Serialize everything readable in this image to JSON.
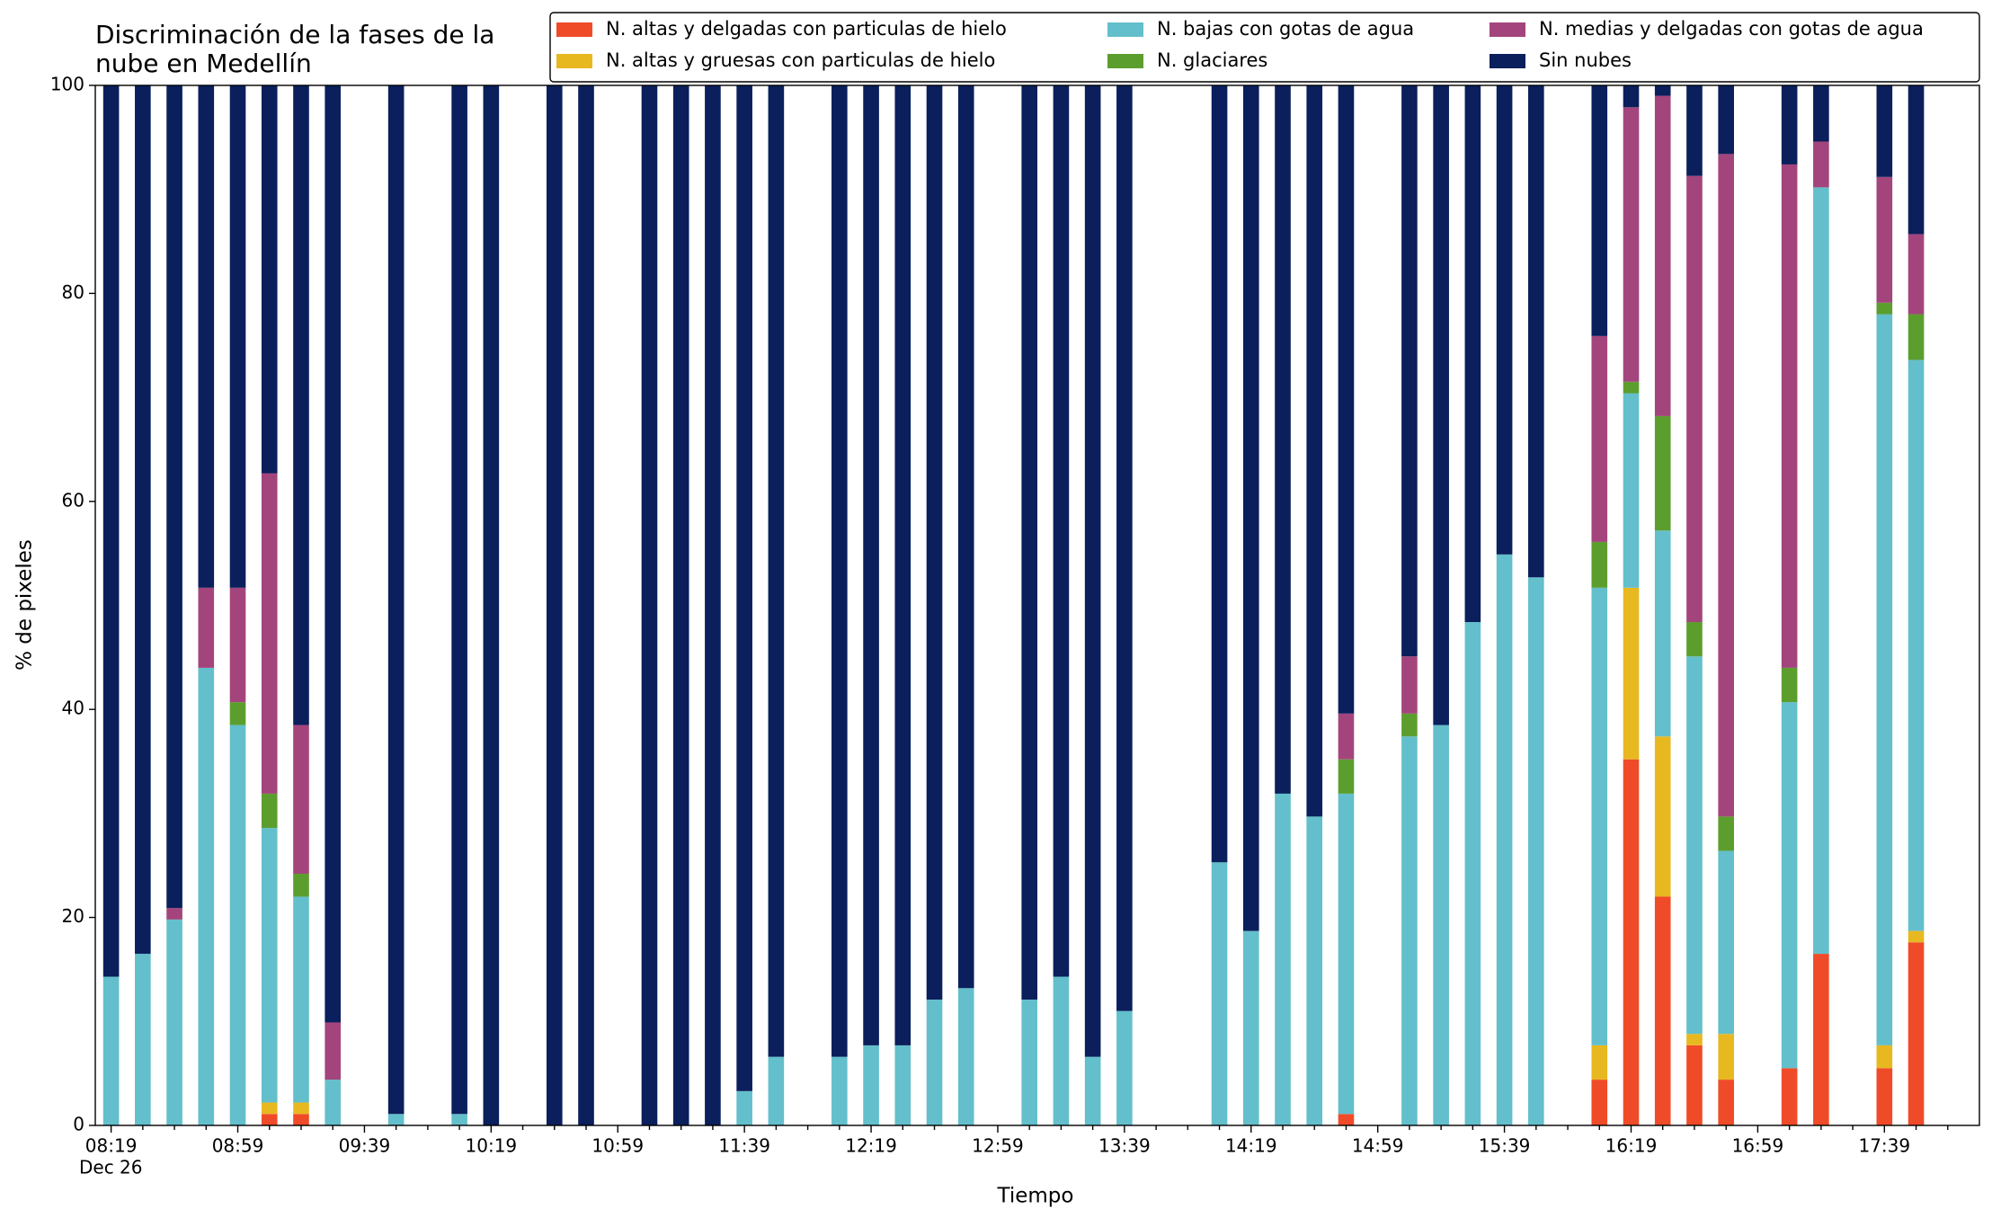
{
  "chart_data": {
    "type": "stacked_bar",
    "title": [
      "Discriminación de la fases de la",
      "nube en Medellín"
    ],
    "xlabel": "Tiempo",
    "ylabel": "% de pixeles",
    "x_date_label": "Dec 26",
    "categories": [
      "08:19",
      null,
      null,
      null,
      "08:59",
      null,
      null,
      null,
      "09:39",
      null,
      null,
      null,
      "10:19",
      null,
      null,
      null,
      "10:59",
      null,
      null,
      null,
      "11:39",
      null,
      null,
      null,
      "12:19",
      null,
      null,
      null,
      "12:59",
      null,
      null,
      null,
      "13:39",
      null,
      null,
      null,
      "14:19",
      null,
      null,
      null,
      "14:59",
      null,
      null,
      null,
      "15:39",
      null,
      null,
      null,
      "16:19",
      null,
      null,
      null,
      "16:59",
      null,
      null,
      null,
      "17:39",
      null,
      null
    ],
    "ylim": [
      0,
      100
    ],
    "yticks": [
      0,
      20,
      40,
      60,
      80,
      100
    ],
    "legend": "upper right",
    "series": [
      {
        "name": "N. altas y delgadas con particulas de hielo",
        "color": "#f04b29",
        "values": [
          0,
          0,
          0,
          0,
          0,
          1.1,
          1.1,
          0,
          null,
          0,
          null,
          0,
          0,
          null,
          0,
          0,
          null,
          0,
          0,
          0,
          0,
          0,
          null,
          0,
          0,
          0,
          0,
          0,
          null,
          0,
          0,
          0,
          0,
          null,
          null,
          0,
          0,
          0,
          0,
          1.1,
          null,
          0,
          0,
          0,
          0,
          0,
          null,
          4.4,
          35.2,
          22,
          7.7,
          4.4,
          null,
          5.5,
          16.5,
          null,
          5.5,
          17.6,
          null
        ]
      },
      {
        "name": "N. altas y gruesas con particulas de hielo",
        "color": "#e8b820",
        "values": [
          0,
          0,
          0,
          0,
          0,
          1.1,
          1.1,
          0,
          null,
          0,
          null,
          0,
          0,
          null,
          0,
          0,
          null,
          0,
          0,
          0,
          0,
          0,
          null,
          0,
          0,
          0,
          0,
          0,
          null,
          0,
          0,
          0,
          0,
          null,
          null,
          0,
          0,
          0,
          0,
          0,
          null,
          0,
          0,
          0,
          0,
          0,
          null,
          3.3,
          16.5,
          15.4,
          1.1,
          4.4,
          null,
          0,
          0,
          null,
          2.2,
          1.1,
          null
        ]
      },
      {
        "name": "N. bajas con gotas de agua",
        "color": "#63bfcb",
        "values": [
          14.3,
          16.5,
          19.8,
          44,
          38.5,
          26.4,
          19.8,
          4.4,
          null,
          1.1,
          null,
          1.1,
          0,
          null,
          0,
          0,
          null,
          0,
          0,
          0,
          3.3,
          6.6,
          null,
          6.6,
          7.7,
          7.7,
          12.1,
          13.2,
          null,
          12.1,
          14.3,
          6.6,
          11,
          null,
          null,
          25.3,
          18.7,
          31.9,
          29.7,
          30.8,
          null,
          37.4,
          38.5,
          48.4,
          54.9,
          52.7,
          null,
          44,
          18.7,
          19.8,
          36.3,
          17.6,
          null,
          35.2,
          73.7,
          null,
          70.3,
          54.9,
          null
        ]
      },
      {
        "name": "N. glaciares",
        "color": "#5c9e2e",
        "values": [
          0,
          0,
          0,
          0,
          2.2,
          3.3,
          2.2,
          0,
          null,
          0,
          null,
          0,
          0,
          null,
          0,
          0,
          null,
          0,
          0,
          0,
          0,
          0,
          null,
          0,
          0,
          0,
          0,
          0,
          null,
          0,
          0,
          0,
          0,
          null,
          null,
          0,
          0,
          0,
          0,
          3.3,
          null,
          2.2,
          0,
          0,
          0,
          0,
          null,
          4.4,
          1.1,
          11,
          3.3,
          3.3,
          null,
          3.3,
          0,
          null,
          1.1,
          4.4,
          null
        ]
      },
      {
        "name": "N. medias y delgadas con gotas de agua",
        "color": "#a3457c",
        "values": [
          0,
          0,
          1.1,
          7.7,
          11,
          30.8,
          14.3,
          5.5,
          null,
          0,
          null,
          0,
          0,
          null,
          0,
          0,
          null,
          0,
          0,
          0,
          0,
          0,
          null,
          0,
          0,
          0,
          0,
          0,
          null,
          0,
          0,
          0,
          0,
          null,
          null,
          0,
          0,
          0,
          0,
          4.4,
          null,
          5.5,
          0,
          0,
          0,
          0,
          null,
          19.8,
          26.4,
          30.8,
          42.9,
          63.7,
          null,
          48.4,
          4.4,
          null,
          12.1,
          7.7,
          null
        ]
      },
      {
        "name": "Sin nubes",
        "color": "#0a1f5c",
        "values": [
          85.7,
          83.5,
          79.1,
          48.3,
          48.3,
          37.3,
          61.5,
          90.1,
          null,
          98.9,
          null,
          98.9,
          100,
          null,
          100,
          100,
          null,
          100,
          100,
          100,
          96.7,
          93.4,
          null,
          93.4,
          92.3,
          92.3,
          87.9,
          86.8,
          null,
          87.9,
          85.7,
          93.4,
          89,
          null,
          null,
          74.7,
          81.3,
          68.1,
          70.3,
          60.4,
          null,
          54.9,
          61.5,
          51.6,
          45.1,
          47.3,
          null,
          24.1,
          2.1,
          1,
          8.7,
          6.6,
          null,
          7.6,
          5.4,
          null,
          8.8,
          14.3,
          null
        ]
      }
    ]
  }
}
